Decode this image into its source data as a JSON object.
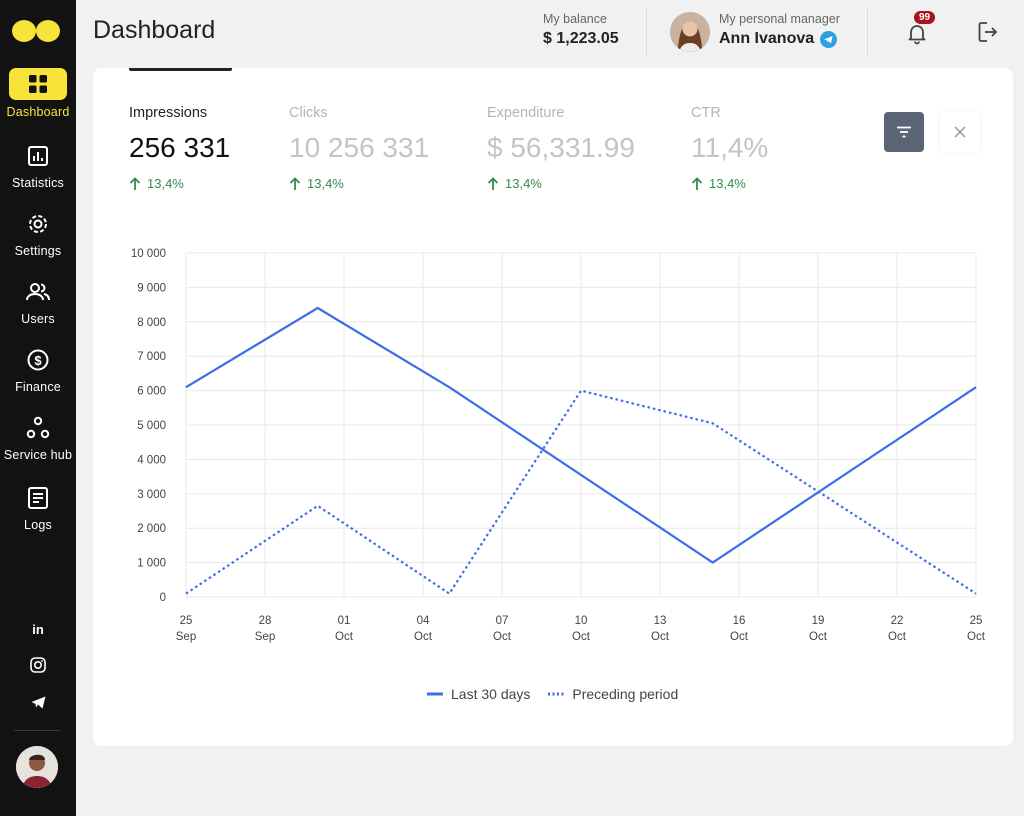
{
  "header": {
    "title": "Dashboard",
    "balance_label": "My balance",
    "balance_value": "$ 1,223.05",
    "manager_label": "My personal manager",
    "manager_name": "Ann Ivanova",
    "notifications_count": "99"
  },
  "sidebar": {
    "items": [
      {
        "label": "Dashboard",
        "icon": "dashboard-icon"
      },
      {
        "label": "Statistics",
        "icon": "statistics-icon"
      },
      {
        "label": "Settings",
        "icon": "settings-icon"
      },
      {
        "label": "Users",
        "icon": "users-icon"
      },
      {
        "label": "Finance",
        "icon": "finance-icon"
      },
      {
        "label": "Service hub",
        "icon": "service-hub-icon"
      },
      {
        "label": "Logs",
        "icon": "logs-icon"
      }
    ],
    "social": [
      "linkedin-icon",
      "instagram-icon",
      "telegram-icon"
    ]
  },
  "metrics": [
    {
      "name": "Impressions",
      "value": "256 331",
      "change": "13,4%"
    },
    {
      "name": "Clicks",
      "value": "10 256 331",
      "change": "13,4%"
    },
    {
      "name": "Expenditure",
      "value": "$ 56,331.99",
      "change": "13,4%"
    },
    {
      "name": "CTR",
      "value": "11,4%",
      "change": "13,4%"
    }
  ],
  "colors": {
    "accent": "#f6e43a",
    "line": "#3b6ee8",
    "positive": "#2f8d4e",
    "badge": "#a8141b"
  },
  "chart_data": {
    "type": "line",
    "x": [
      "25 Sep",
      "28 Sep",
      "01 Oct",
      "04 Oct",
      "07 Oct",
      "10 Oct",
      "13 Oct",
      "16 Oct",
      "19 Oct",
      "22 Oct",
      "25 Oct"
    ],
    "x_top": [
      "25",
      "28",
      "01",
      "04",
      "07",
      "10",
      "13",
      "16",
      "19",
      "22",
      "25"
    ],
    "x_bottom": [
      "Sep",
      "Sep",
      "Oct",
      "Oct",
      "Oct",
      "Oct",
      "Oct",
      "Oct",
      "Oct",
      "Oct",
      "Oct"
    ],
    "yticks": [
      "0",
      "1 000",
      "2 000",
      "3 000",
      "4 000",
      "5 000",
      "6 000",
      "7 000",
      "8 000",
      "9 000",
      "10 000"
    ],
    "ylim": [
      0,
      10000
    ],
    "grid": true,
    "legend": "bottom-center",
    "series": [
      {
        "name": "Last 30 days",
        "style": "solid",
        "points": [
          [
            "25 Sep",
            6100
          ],
          [
            "30 Sep",
            8400
          ],
          [
            "05 Oct",
            6100
          ],
          [
            "15 Oct",
            1000
          ],
          [
            "25 Oct",
            6100
          ]
        ]
      },
      {
        "name": "Preceding period",
        "style": "dotted",
        "points": [
          [
            "25 Sep",
            100
          ],
          [
            "30 Sep",
            2650
          ],
          [
            "05 Oct",
            100
          ],
          [
            "10 Oct",
            6000
          ],
          [
            "15 Oct",
            5050
          ],
          [
            "25 Oct",
            100
          ]
        ]
      }
    ]
  }
}
